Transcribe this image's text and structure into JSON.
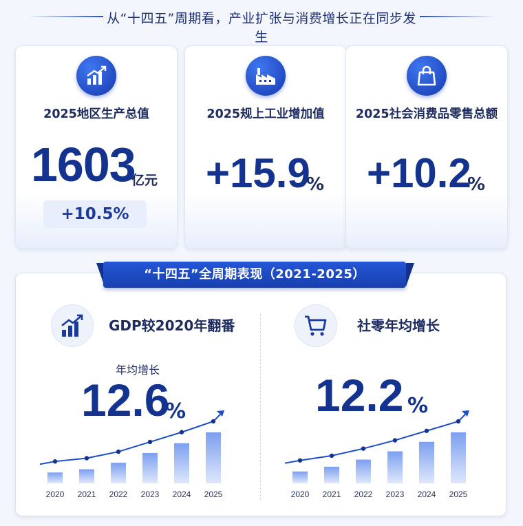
{
  "header": {
    "title": "从“十四五”周期看，产业扩张与消费增长正在同步发生"
  },
  "cards": [
    {
      "label": "2025地区生产总值",
      "value": "1603",
      "unit": "亿元",
      "badge": "+10.5%",
      "icon": "bar-chart-up-icon"
    },
    {
      "label": "2025规上工业增加值",
      "value": "+15.9",
      "unit": "%",
      "icon": "factory-icon"
    },
    {
      "label": "2025社会消费品零售总额",
      "value": "+10.2",
      "unit": "%",
      "icon": "shopping-bag-icon"
    }
  ],
  "section": {
    "title": "“十四五”全周期表现（2021-2025）",
    "left": {
      "title": "GDP较2020年翻番",
      "caption": "年均增长",
      "value": "12.6",
      "unit": "%",
      "icon": "bar-chart-up-icon"
    },
    "right": {
      "title": "社零年均增长",
      "value": "12.2",
      "unit": "%",
      "icon": "shopping-cart-icon"
    }
  },
  "chart_data": [
    {
      "type": "bar",
      "categories": [
        "2020",
        "2021",
        "2022",
        "2023",
        "2024",
        "2025"
      ],
      "values": [
        1.0,
        1.3,
        1.9,
        2.8,
        3.7,
        4.7
      ],
      "trend_line": true
    },
    {
      "type": "bar",
      "categories": [
        "2020",
        "2021",
        "2022",
        "2023",
        "2024",
        "2025"
      ],
      "values": [
        1.0,
        1.4,
        2.0,
        2.7,
        3.5,
        4.3
      ],
      "trend_line": true
    }
  ],
  "colors": {
    "accent": "#1f4ecd",
    "dark_blue": "#14338f",
    "bar_top": "#7d9ff0",
    "bar_bottom": "#dfe8fb"
  }
}
